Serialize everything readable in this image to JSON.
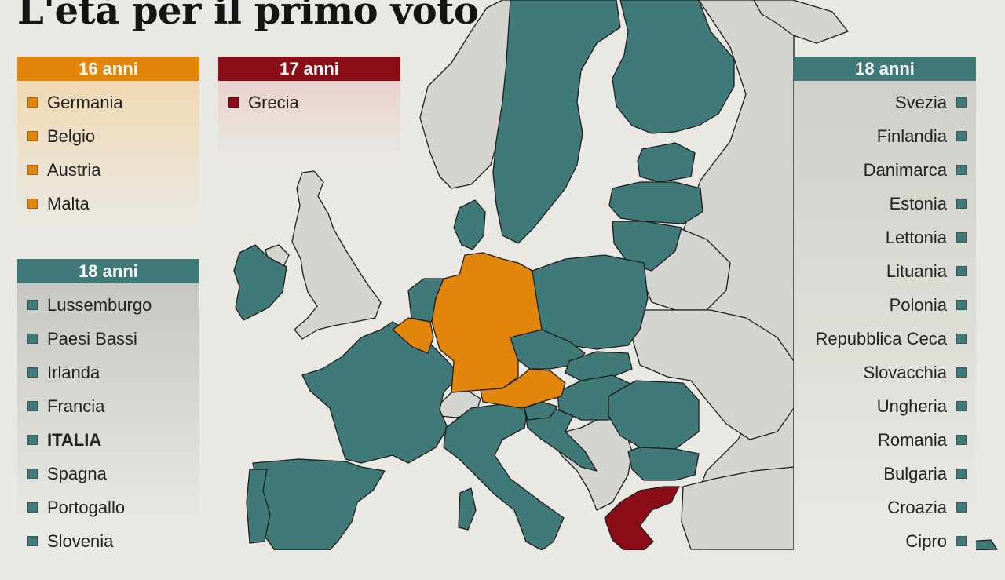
{
  "title": "L'età per il primo voto",
  "colors": {
    "age16": "#e1860b",
    "age17": "#8a0d17",
    "age18": "#3f7a78",
    "non_eu": "#d4d4d1",
    "sea": "#e9e8e2"
  },
  "legend": {
    "age16": {
      "header": "16 anni",
      "countries": [
        "Germania",
        "Belgio",
        "Austria",
        "Malta"
      ]
    },
    "age17": {
      "header": "17 anni",
      "countries": [
        "Grecia"
      ]
    },
    "age18_left": {
      "header": "18 anni",
      "countries": [
        "Lussemburgo",
        "Paesi Bassi",
        "Irlanda",
        "Francia",
        "ITALIA",
        "Spagna",
        "Portogallo",
        "Slovenia"
      ]
    },
    "age18_right": {
      "header": "18 anni",
      "countries": [
        "Svezia",
        "Finlandia",
        "Danimarca",
        "Estonia",
        "Lettonia",
        "Lituania",
        "Polonia",
        "Repubblica Ceca",
        "Slovacchia",
        "Ungheria",
        "Romania",
        "Bulgaria",
        "Croazia",
        "Cipro"
      ]
    }
  }
}
